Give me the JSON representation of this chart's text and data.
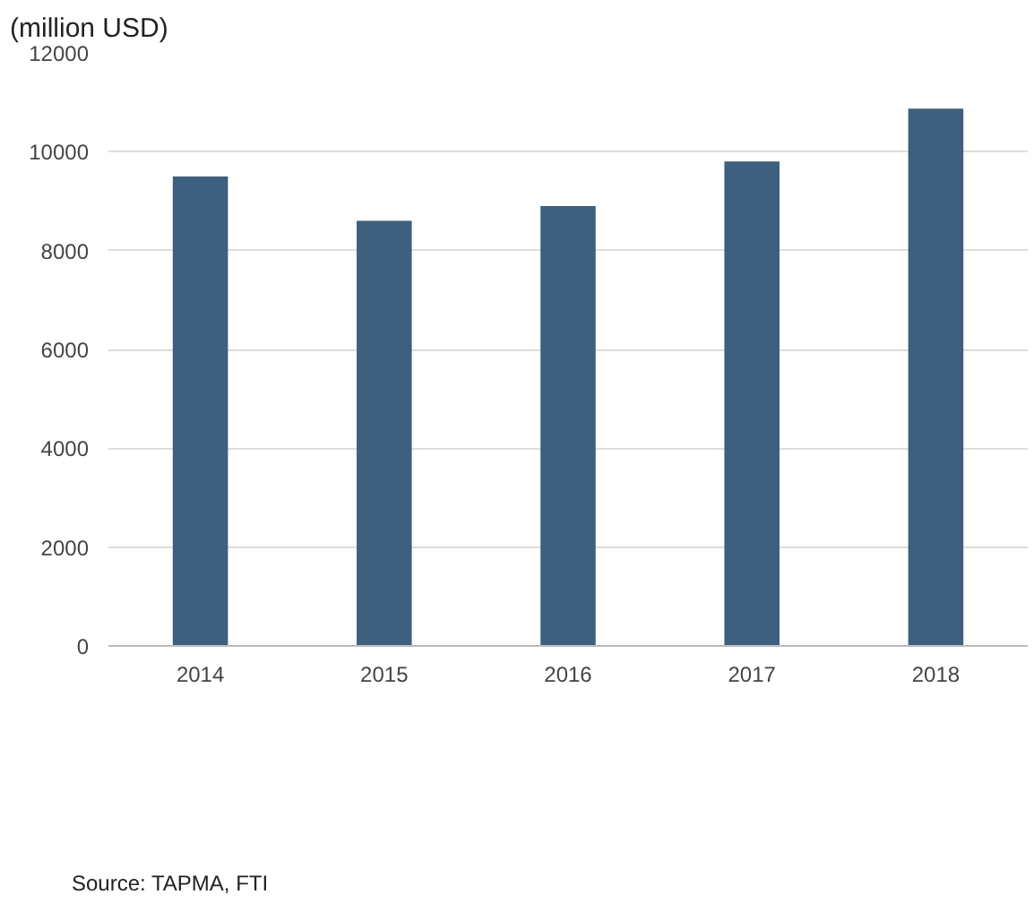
{
  "chart_data": {
    "type": "bar",
    "title": "(million USD)",
    "categories": [
      "2014",
      "2015",
      "2016",
      "2017",
      "2018"
    ],
    "values": [
      9500,
      8600,
      8900,
      9800,
      10870
    ],
    "color": "#3e5f7d",
    "ylim": [
      0,
      12000
    ],
    "yticks": [
      0,
      2000,
      4000,
      6000,
      8000,
      10000,
      12000
    ],
    "grid": "y",
    "annotations": [
      "Source: TAPMA, FTI"
    ]
  }
}
